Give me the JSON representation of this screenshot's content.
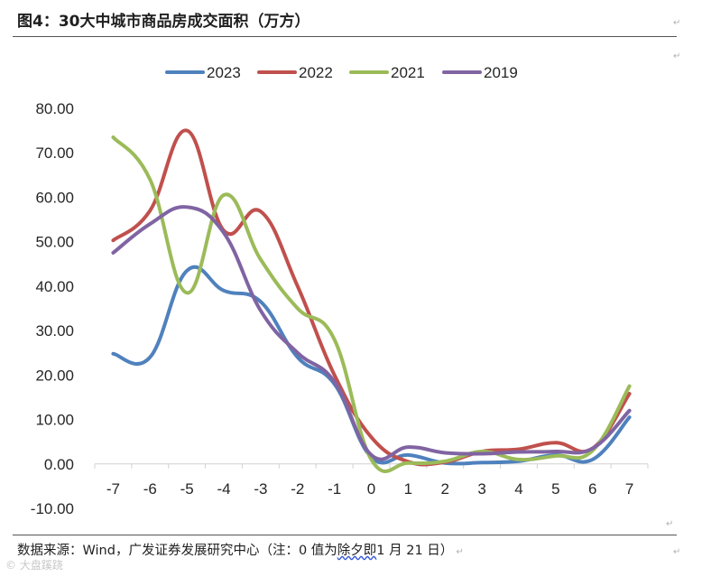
{
  "header": {
    "title": "图4：30大中城市商品房成交面积（万方）"
  },
  "footer": {
    "source_prefix": "数据来源：Wind，广发证券发展研究中心（注：0 值为",
    "source_wavy": "除夕即",
    "source_suffix": "1 月 21 日）",
    "watermark": "© 大盘蹊跷"
  },
  "colors": {
    "2023": "#4f81bd",
    "2022": "#c0504d",
    "2021": "#9bbb59",
    "2019": "#8064a2"
  },
  "chart_data": {
    "type": "line",
    "title": "",
    "xlabel": "",
    "ylabel": "",
    "categories": [
      "-7",
      "-6",
      "-5",
      "-4",
      "-3",
      "-2",
      "-1",
      "0",
      "1",
      "2",
      "3",
      "4",
      "5",
      "6",
      "7"
    ],
    "ylim": [
      -10,
      80
    ],
    "yticks": [
      "-10.00",
      "0.00",
      "10.00",
      "20.00",
      "30.00",
      "40.00",
      "50.00",
      "60.00",
      "70.00",
      "80.00"
    ],
    "grid": false,
    "legend_position": "top",
    "series": [
      {
        "name": "2023",
        "values": [
          24.8,
          24.0,
          43.5,
          39.0,
          36.5,
          24.0,
          18.0,
          1.5,
          2.0,
          0.2,
          0.3,
          0.6,
          2.0,
          1.0,
          10.5
        ]
      },
      {
        "name": "2022",
        "values": [
          50.3,
          57.0,
          75.0,
          52.5,
          56.8,
          40.0,
          20.0,
          6.0,
          0.5,
          0.4,
          2.8,
          3.3,
          4.8,
          3.5,
          15.8
        ]
      },
      {
        "name": "2021",
        "values": [
          73.5,
          64.0,
          38.5,
          60.5,
          46.0,
          35.0,
          28.0,
          1.0,
          0.2,
          0.6,
          2.8,
          1.0,
          1.8,
          3.0,
          17.5
        ]
      },
      {
        "name": "2019",
        "values": [
          47.5,
          54.0,
          57.8,
          52.0,
          34.5,
          25.0,
          18.5,
          2.0,
          3.8,
          2.5,
          2.3,
          2.7,
          2.8,
          3.5,
          12.0
        ]
      }
    ]
  }
}
